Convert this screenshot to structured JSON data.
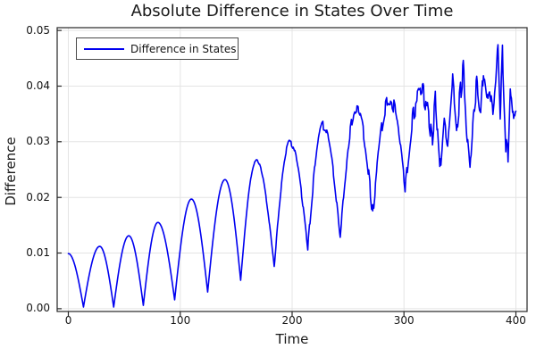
{
  "title": "Absolute Difference in States Over Time",
  "colors": {
    "line": "#0000f0",
    "grid": "#e4e4e4",
    "frame": "#262626",
    "text": "#141414",
    "background": "#ffffff"
  },
  "legend": {
    "position": "top-left",
    "entries": [
      "Difference in States"
    ]
  },
  "chart_data": {
    "type": "line",
    "title": "Absolute Difference in States Over Time",
    "xlabel": "Time",
    "ylabel": "Difference",
    "xlim": [
      -10,
      410
    ],
    "ylim": [
      -0.0005,
      0.0505
    ],
    "xticks": [
      0,
      100,
      200,
      300,
      400
    ],
    "xtick_labels": [
      "0",
      "100",
      "200",
      "300",
      "400"
    ],
    "yticks": [
      0,
      0.01,
      0.02,
      0.03,
      0.04,
      0.05
    ],
    "ytick_labels": [
      "0.00",
      "0.01",
      "0.02",
      "0.03",
      "0.04",
      "0.05"
    ],
    "grid": true,
    "legend_position": "top-left",
    "series": [
      {
        "name": "Difference in States",
        "color": "#0000f0",
        "line_width": 1.6,
        "keypoints": [
          [
            0,
            0.0099
          ],
          [
            13.5,
            0.0003
          ],
          [
            28,
            0.0112
          ],
          [
            40.5,
            0.0003
          ],
          [
            54,
            0.0131
          ],
          [
            67,
            0.0006
          ],
          [
            80,
            0.0155
          ],
          [
            95,
            0.0016
          ],
          [
            110,
            0.0197
          ],
          [
            124.5,
            0.003
          ],
          [
            140,
            0.0232
          ],
          [
            154,
            0.0051
          ],
          [
            168,
            0.0266
          ],
          [
            184,
            0.0075
          ],
          [
            198,
            0.0299
          ],
          [
            214,
            0.011
          ],
          [
            228,
            0.0329
          ],
          [
            243,
            0.013
          ],
          [
            258,
            0.036
          ],
          [
            272,
            0.0167
          ],
          [
            287,
            0.0379
          ],
          [
            301,
            0.0214
          ],
          [
            308,
            0.0355
          ],
          [
            313,
            0.0378
          ],
          [
            317,
            0.039
          ],
          [
            321,
            0.036
          ],
          [
            325,
            0.0296
          ],
          [
            328,
            0.0375
          ],
          [
            332,
            0.0235
          ],
          [
            336,
            0.0345
          ],
          [
            339,
            0.0305
          ],
          [
            343,
            0.0416
          ],
          [
            347,
            0.0317
          ],
          [
            350,
            0.038
          ],
          [
            353,
            0.0432
          ],
          [
            356,
            0.033
          ],
          [
            359,
            0.0259
          ],
          [
            362,
            0.0355
          ],
          [
            365,
            0.0401
          ],
          [
            367,
            0.036
          ],
          [
            369,
            0.0352
          ],
          [
            371,
            0.0425
          ],
          [
            374,
            0.0378
          ],
          [
            376,
            0.0398
          ],
          [
            379,
            0.0347
          ],
          [
            382,
            0.041
          ],
          [
            384,
            0.049
          ],
          [
            386,
            0.0352
          ],
          [
            388,
            0.0468
          ],
          [
            391,
            0.0299
          ],
          [
            393,
            0.0278
          ],
          [
            395,
            0.0407
          ],
          [
            398,
            0.033
          ],
          [
            400,
            0.0355
          ]
        ],
        "interp_linear_after": 296,
        "sample_step": 0.5,
        "noise": {
          "seed": 11,
          "start": 150,
          "base": 0.0005,
          "grow": 0.0016,
          "ramp": 130,
          "hold": 1.2
        }
      }
    ]
  }
}
